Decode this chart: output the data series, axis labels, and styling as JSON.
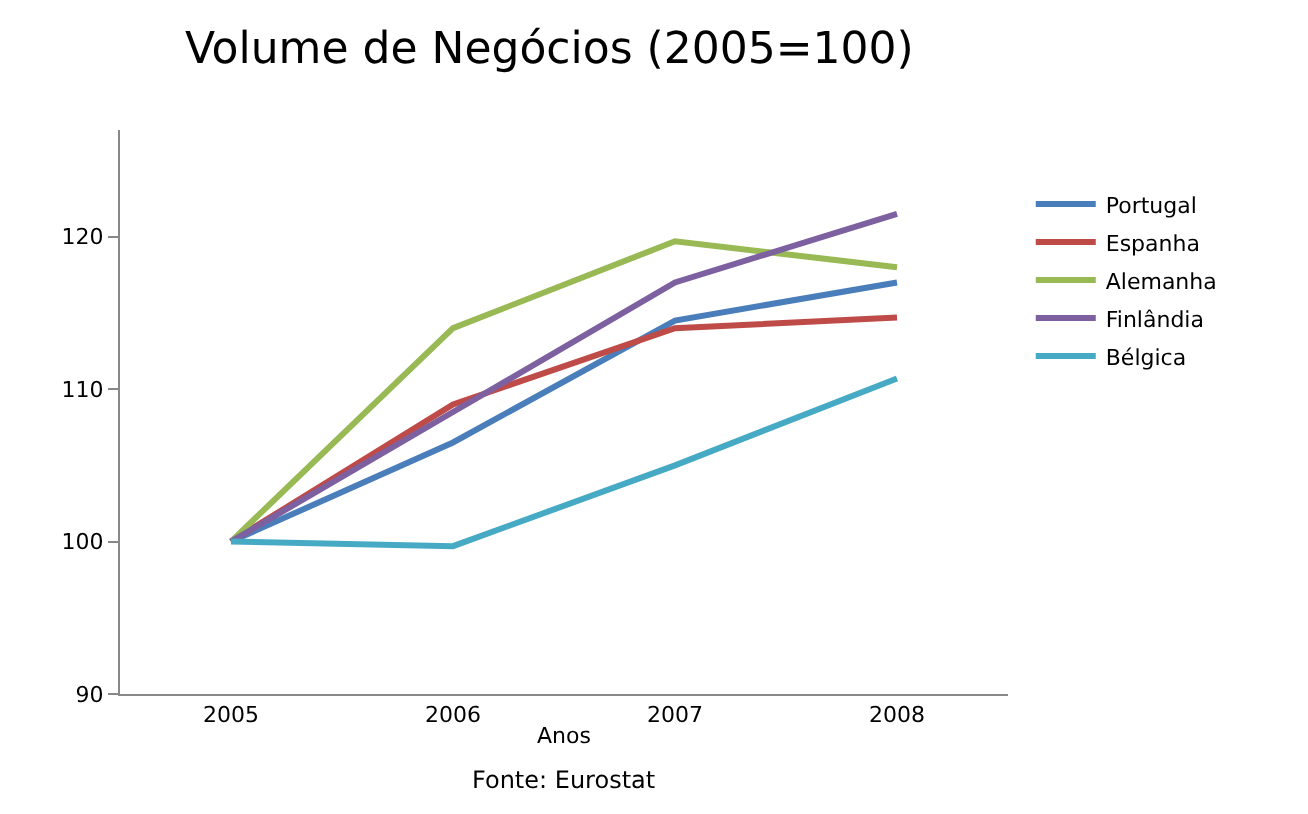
{
  "chart_data": {
    "type": "line",
    "title": "Volume de Negócios (2005=100)",
    "xlabel": "Anos",
    "annotations": [
      "Fonte: Eurostat"
    ],
    "categories": [
      "2005",
      "2006",
      "2007",
      "2008"
    ],
    "series": [
      {
        "name": "Portugal",
        "color": "#4a7ebb",
        "values": [
          100,
          106.5,
          114.5,
          117
        ]
      },
      {
        "name": "Espanha",
        "color": "#be4b48",
        "values": [
          100,
          109,
          114,
          114.7
        ]
      },
      {
        "name": "Alemanha",
        "color": "#98b954",
        "values": [
          100,
          114,
          119.7,
          118
        ]
      },
      {
        "name": "Finlândia",
        "color": "#7d60a0",
        "values": [
          100,
          108.5,
          117,
          121.5
        ]
      },
      {
        "name": "Bélgica",
        "color": "#46aac5",
        "values": [
          100,
          99.7,
          105,
          110.7
        ]
      }
    ],
    "ylim": [
      90,
      127
    ],
    "yticks": [
      90,
      100,
      110,
      120
    ],
    "grid": false,
    "legend": "right",
    "marker": "none",
    "line_style": "solid"
  }
}
